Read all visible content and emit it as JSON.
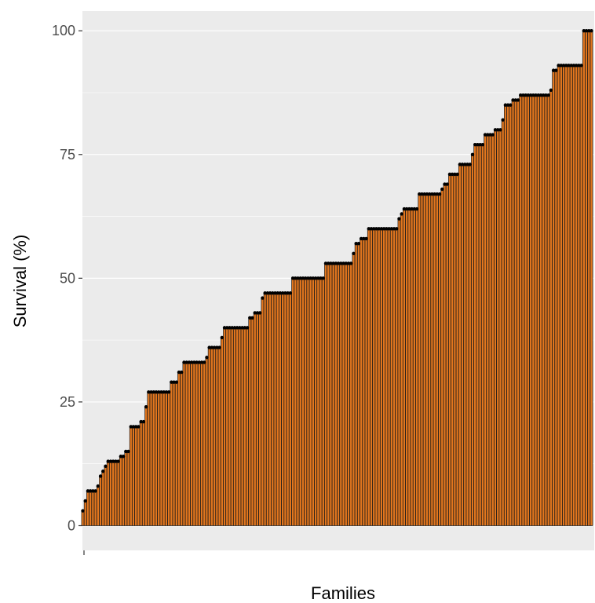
{
  "chart_data": {
    "type": "bar",
    "title": "",
    "xlabel": "Families",
    "ylabel": "Survival (%)",
    "ylim": [
      -5,
      104
    ],
    "yticks": [
      0,
      25,
      50,
      75,
      100
    ],
    "grid": true,
    "legend": "none",
    "colors": {
      "panel": "#EBEBEB",
      "grid": "#FFFFFF",
      "bar_fill": "#E2761E",
      "bar_outline": "#1A1A1A",
      "point": "#000000",
      "tick_text": "#4D4D4D"
    },
    "series": [
      {
        "values": [
          3,
          5,
          7,
          7,
          7,
          7,
          8,
          10,
          11,
          12,
          13,
          13,
          13,
          13,
          13,
          14,
          14,
          15,
          15,
          20,
          20,
          20,
          20,
          21,
          21,
          24,
          27,
          27,
          27,
          27,
          27,
          27,
          27,
          27,
          27,
          29,
          29,
          29,
          31,
          31,
          33,
          33,
          33,
          33,
          33,
          33,
          33,
          33,
          33,
          34,
          36,
          36,
          36,
          36,
          36,
          38,
          40,
          40,
          40,
          40,
          40,
          40,
          40,
          40,
          40,
          40,
          42,
          42,
          43,
          43,
          43,
          46,
          47,
          47,
          47,
          47,
          47,
          47,
          47,
          47,
          47,
          47,
          47,
          50,
          50,
          50,
          50,
          50,
          50,
          50,
          50,
          50,
          50,
          50,
          50,
          50,
          53,
          53,
          53,
          53,
          53,
          53,
          53,
          53,
          53,
          53,
          53,
          55,
          57,
          57,
          58,
          58,
          58,
          60,
          60,
          60,
          60,
          60,
          60,
          60,
          60,
          60,
          60,
          60,
          60,
          62,
          63,
          64,
          64,
          64,
          64,
          64,
          64,
          67,
          67,
          67,
          67,
          67,
          67,
          67,
          67,
          67,
          68,
          69,
          69,
          71,
          71,
          71,
          71,
          73,
          73,
          73,
          73,
          73,
          75,
          77,
          77,
          77,
          77,
          79,
          79,
          79,
          79,
          80,
          80,
          80,
          82,
          85,
          85,
          85,
          86,
          86,
          86,
          87,
          87,
          87,
          87,
          87,
          87,
          87,
          87,
          87,
          87,
          87,
          87,
          88,
          92,
          92,
          93,
          93,
          93,
          93,
          93,
          93,
          93,
          93,
          93,
          93,
          100,
          100,
          100,
          100
        ]
      }
    ]
  }
}
